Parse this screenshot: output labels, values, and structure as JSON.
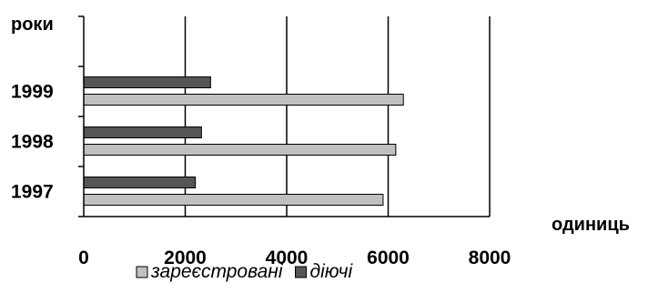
{
  "chart_data": {
    "type": "bar",
    "orientation": "horizontal",
    "categories": [
      "1997",
      "1998",
      "1999"
    ],
    "series": [
      {
        "name": "зареєстровані",
        "values": [
          5900,
          6150,
          6300
        ],
        "color": "#c0c0c0"
      },
      {
        "name": "діючі",
        "values": [
          2200,
          2320,
          2500
        ],
        "color": "#555555"
      }
    ],
    "xlabel": "одиниць",
    "ylabel": "роки",
    "xlim": [
      0,
      8000
    ],
    "xticks": [
      "0",
      "2000",
      "4000",
      "6000",
      "8000"
    ],
    "grid": "vertical",
    "legend": "bottom"
  }
}
